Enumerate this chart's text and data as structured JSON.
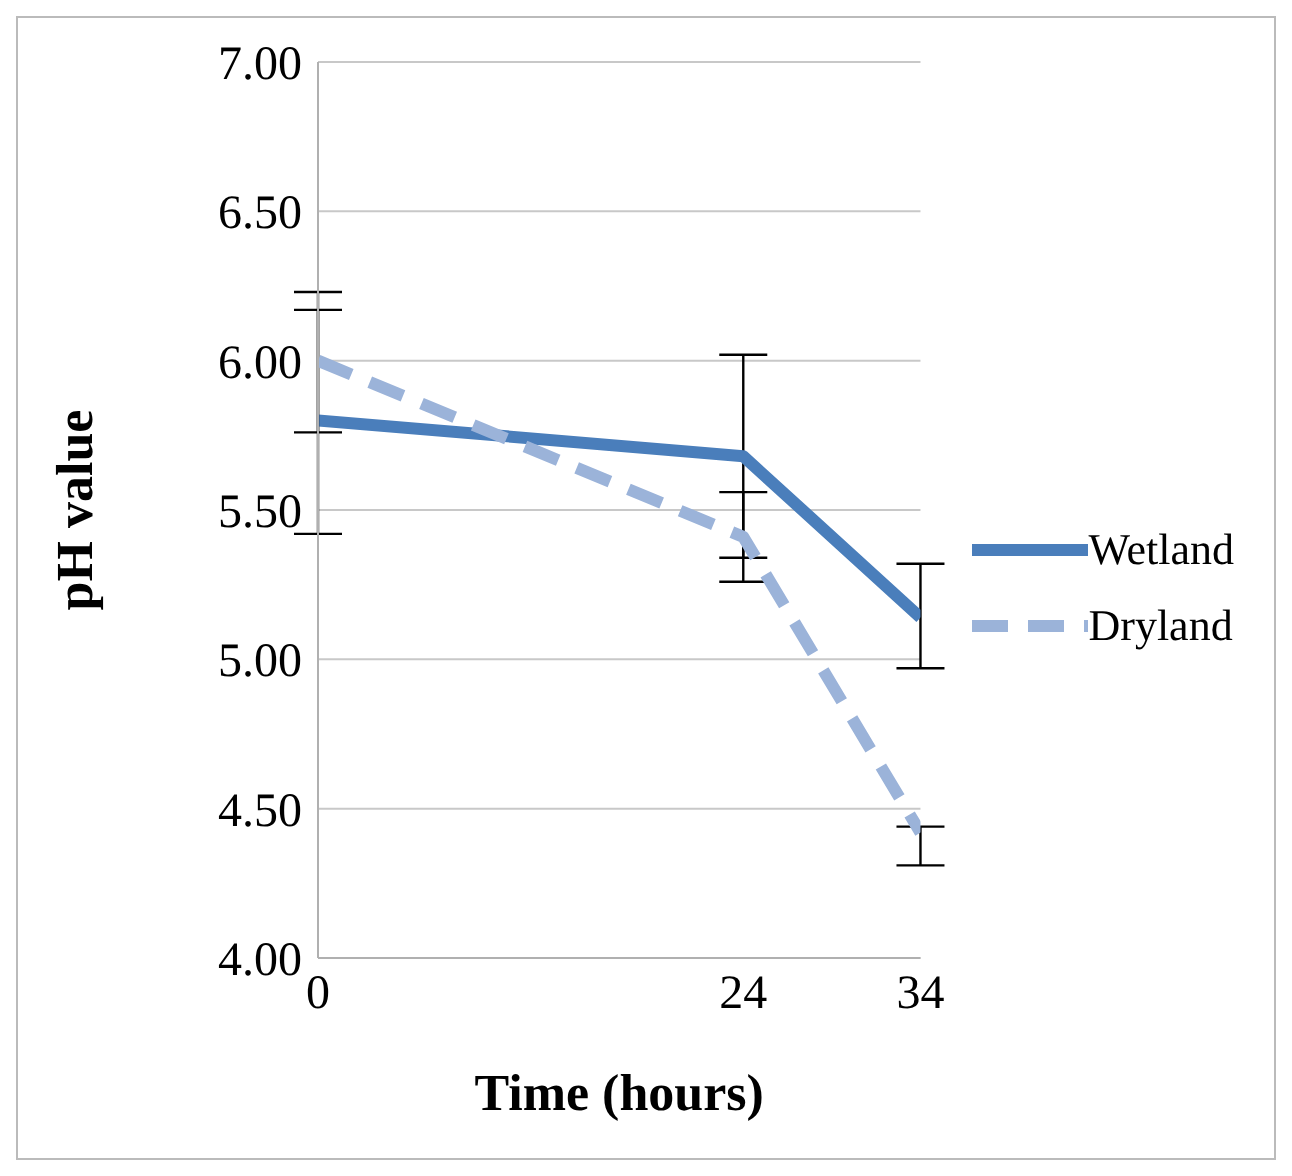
{
  "chart_data": {
    "type": "line",
    "xlabel": "Time (hours)",
    "ylabel": "pH value",
    "x": [
      0,
      24,
      34
    ],
    "series": [
      {
        "name": "Wetland",
        "color": "#4a7ebb",
        "values": [
          5.8,
          5.68,
          5.14
        ],
        "errors": [
          [
            5.42,
            6.17
          ],
          [
            5.34,
            6.02
          ],
          [
            4.97,
            5.32
          ]
        ],
        "line_style": "solid"
      },
      {
        "name": "Dryland",
        "color": "#9bb3d9",
        "values": [
          6.0,
          5.41,
          4.42
        ],
        "errors": [
          [
            5.76,
            6.23
          ],
          [
            5.26,
            5.56
          ],
          [
            4.31,
            4.44
          ]
        ],
        "line_style": "dashed"
      }
    ],
    "xlim": [
      0,
      34
    ],
    "xticks": [
      0,
      24,
      34
    ],
    "ylim": [
      4,
      7
    ],
    "yticks": [
      {
        "value": 4,
        "label": "4.00"
      },
      {
        "value": 4.5,
        "label": "4.50"
      },
      {
        "value": 5,
        "label": "5.00"
      },
      {
        "value": 5.5,
        "label": "5.50"
      },
      {
        "value": 6,
        "label": "6.00"
      },
      {
        "value": 6.5,
        "label": "6.50"
      },
      {
        "value": 7,
        "label": "7.00"
      }
    ],
    "grid": "y",
    "legend": "right",
    "marker": "none"
  }
}
